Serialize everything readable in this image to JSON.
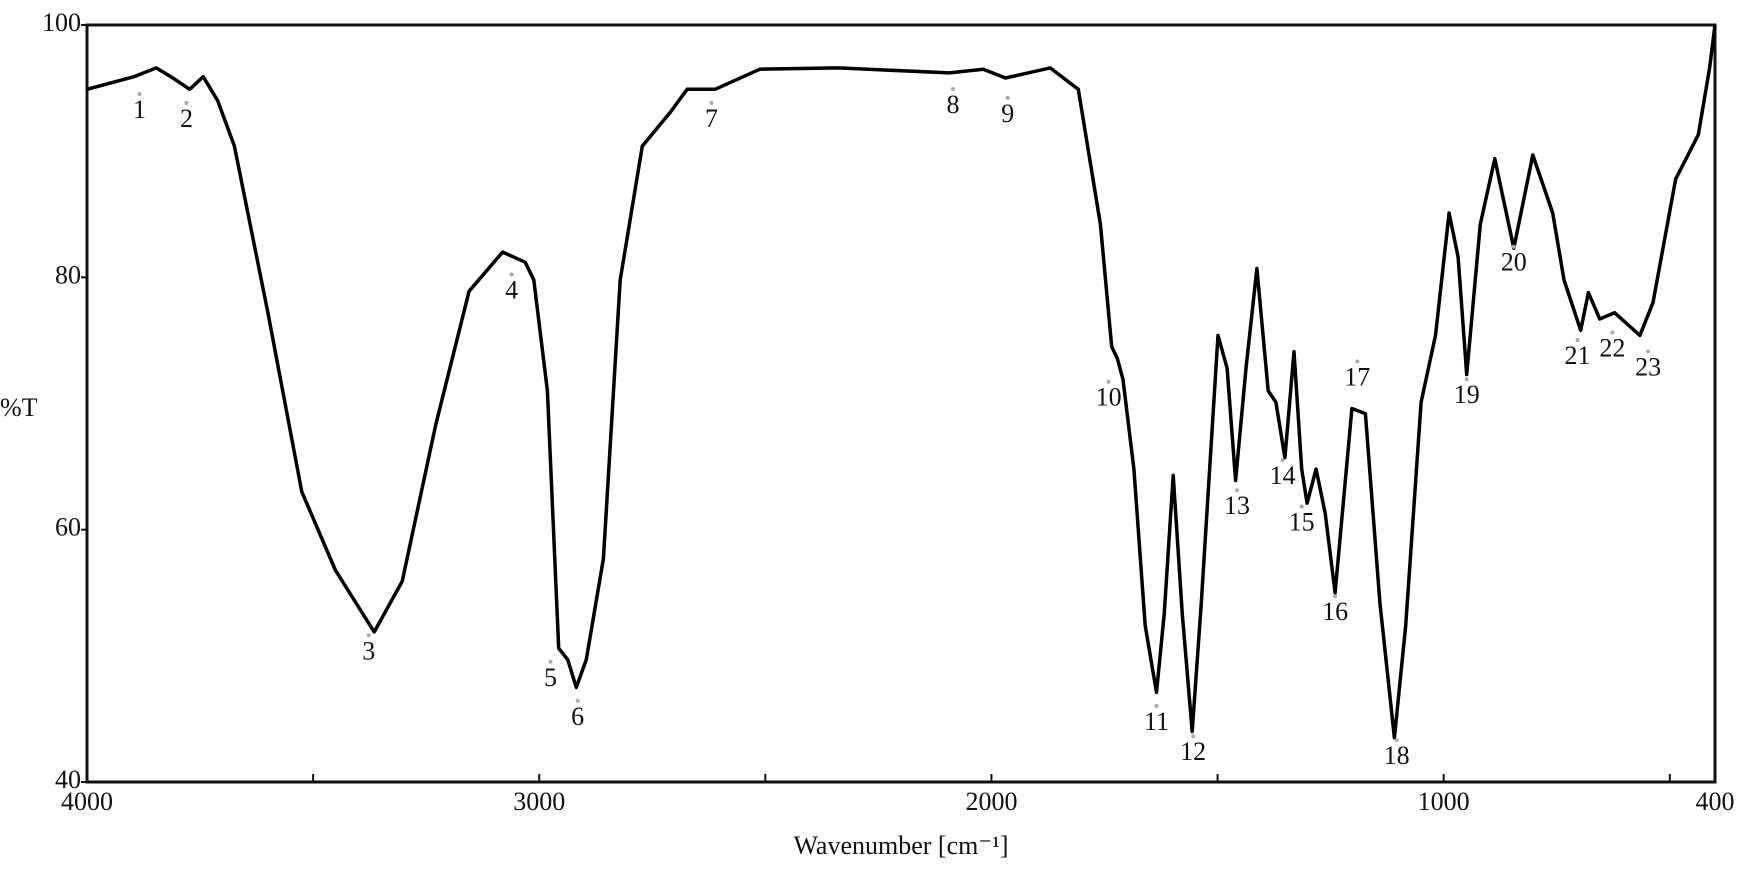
{
  "chart_data": {
    "type": "line",
    "xlabel": "Wavenumber [cm⁻¹]",
    "ylabel": "%T",
    "xlim": [
      4000,
      400
    ],
    "ylim": [
      40,
      100
    ],
    "xticks": [
      4000,
      3000,
      2000,
      1000,
      400
    ],
    "xminorticks": [
      3500,
      2500,
      1500,
      500
    ],
    "yticks": [
      40,
      60,
      80,
      100
    ],
    "series": [
      {
        "color": "#000000",
        "x": [
          4000,
          3896,
          3847,
          3810,
          3773,
          3743,
          3711,
          3674,
          3600,
          3525,
          3451,
          3365,
          3303,
          3229,
          3155,
          3081,
          3031,
          3012,
          2982,
          2957,
          2937,
          2918,
          2896,
          2858,
          2821,
          2772,
          2710,
          2673,
          2611,
          2512,
          2339,
          2093,
          2018,
          1969,
          1870,
          1808,
          1759,
          1734,
          1722,
          1709,
          1685,
          1660,
          1635,
          1618,
          1598,
          1578,
          1556,
          1536,
          1499,
          1479,
          1460,
          1437,
          1413,
          1388,
          1371,
          1351,
          1331,
          1314,
          1302,
          1282,
          1262,
          1240,
          1203,
          1173,
          1141,
          1109,
          1084,
          1050,
          1018,
          988,
          968,
          949,
          919,
          887,
          845,
          803,
          759,
          734,
          697,
          680,
          655,
          622,
          566,
          537,
          487,
          437,
          412,
          400
        ],
        "values": [
          94.9,
          95.9,
          96.6,
          95.8,
          94.9,
          95.9,
          94,
          90.4,
          77.2,
          63,
          56.8,
          51.9,
          55.9,
          68.3,
          78.9,
          82,
          81.2,
          79.8,
          71,
          50.6,
          49.7,
          47.5,
          49.7,
          57.7,
          79.8,
          90.4,
          93.1,
          94.9,
          94.9,
          96.5,
          96.6,
          96.2,
          96.5,
          95.8,
          96.6,
          94.9,
          84.2,
          74.5,
          73.6,
          71.9,
          64.8,
          52.4,
          47.1,
          53.3,
          64.3,
          53.3,
          44,
          54.2,
          75.4,
          72.8,
          63.9,
          72.8,
          80.7,
          71,
          70.1,
          65.7,
          74.1,
          64.8,
          62.1,
          64.8,
          61.3,
          55,
          69.6,
          69.2,
          54.2,
          43.5,
          52.4,
          70.1,
          75.4,
          85.1,
          81.6,
          72.3,
          84.2,
          89.4,
          82.3,
          89.7,
          85.1,
          79.8,
          75.8,
          78.8,
          76.7,
          77.2,
          75.4,
          78,
          87.8,
          91.3,
          96.6,
          100
        ]
      }
    ],
    "annotations": [
      {
        "text": "1",
        "x": 3884,
        "y": 93.1
      },
      {
        "text": "2",
        "x": 3780,
        "y": 92.4
      },
      {
        "text": "3",
        "x": 3377,
        "y": 50.2
      },
      {
        "text": "4",
        "x": 3061,
        "y": 78.8
      },
      {
        "text": "5",
        "x": 2975,
        "y": 48.1
      },
      {
        "text": "6",
        "x": 2915,
        "y": 45
      },
      {
        "text": "7",
        "x": 2619,
        "y": 92.4
      },
      {
        "text": "8",
        "x": 2085,
        "y": 93.5
      },
      {
        "text": "9",
        "x": 1964,
        "y": 92.8
      },
      {
        "text": "10",
        "x": 1741,
        "y": 70.3
      },
      {
        "text": "11",
        "x": 1635,
        "y": 44.6
      },
      {
        "text": "12",
        "x": 1554,
        "y": 42.2
      },
      {
        "text": "13",
        "x": 1457,
        "y": 61.7
      },
      {
        "text": "14",
        "x": 1356,
        "y": 64.1
      },
      {
        "text": "15",
        "x": 1314,
        "y": 60.4
      },
      {
        "text": "16",
        "x": 1240,
        "y": 53.3
      },
      {
        "text": "17",
        "x": 1191,
        "y": 71.9
      },
      {
        "text": "18",
        "x": 1104,
        "y": 41.9
      },
      {
        "text": "19",
        "x": 949,
        "y": 70.5
      },
      {
        "text": "20",
        "x": 845,
        "y": 81
      },
      {
        "text": "21",
        "x": 704,
        "y": 73.6
      },
      {
        "text": "22",
        "x": 627,
        "y": 74.2
      },
      {
        "text": "23",
        "x": 548,
        "y": 72.7
      }
    ]
  }
}
